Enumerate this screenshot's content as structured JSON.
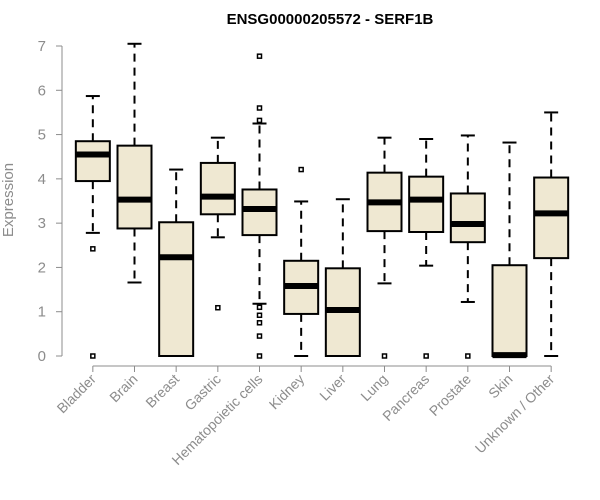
{
  "chart_data": {
    "type": "boxplot",
    "title": "ENSG00000205572 - SERF1B",
    "xlabel": "",
    "ylabel": "Expression",
    "ylim": [
      0,
      7
    ],
    "yticks": [
      0,
      1,
      2,
      3,
      4,
      5,
      6,
      7
    ],
    "grid": false,
    "legend": "none",
    "colors": {
      "box_fill": "#efe8d2",
      "stroke": "#000000",
      "axis": "#8c8c8c"
    },
    "categories": [
      "Bladder",
      "Brain",
      "Breast",
      "Gastric",
      "Hematopoietic cells",
      "Kidney",
      "Liver",
      "Lung",
      "Pancreas",
      "Prostate",
      "Skin",
      "Unknown / Other"
    ],
    "boxes": [
      {
        "name": "Bladder",
        "whisker_low": 2.78,
        "q1": 3.95,
        "median": 4.55,
        "q3": 4.85,
        "whisker_high": 5.87,
        "outliers": [
          2.42,
          0.0
        ]
      },
      {
        "name": "Brain",
        "whisker_low": 1.66,
        "q1": 2.88,
        "median": 3.53,
        "q3": 4.75,
        "whisker_high": 7.05,
        "outliers": []
      },
      {
        "name": "Breast",
        "whisker_low": 0.0,
        "q1": 0.0,
        "median": 2.23,
        "q3": 3.02,
        "whisker_high": 4.21,
        "outliers": []
      },
      {
        "name": "Gastric",
        "whisker_low": 2.68,
        "q1": 3.2,
        "median": 3.6,
        "q3": 4.36,
        "whisker_high": 4.93,
        "outliers": [
          1.09
        ]
      },
      {
        "name": "Hematopoietic cells",
        "whisker_low": 1.18,
        "q1": 2.73,
        "median": 3.32,
        "q3": 3.76,
        "whisker_high": 5.25,
        "outliers": [
          6.77,
          5.6,
          5.32,
          1.1,
          0.92,
          0.75,
          0.45,
          0.0
        ]
      },
      {
        "name": "Kidney",
        "whisker_low": 0.0,
        "q1": 0.95,
        "median": 1.58,
        "q3": 2.15,
        "whisker_high": 3.49,
        "outliers": [
          4.21
        ]
      },
      {
        "name": "Liver",
        "whisker_low": 0.0,
        "q1": 0.0,
        "median": 1.04,
        "q3": 1.98,
        "whisker_high": 3.54,
        "outliers": []
      },
      {
        "name": "Lung",
        "whisker_low": 1.64,
        "q1": 2.82,
        "median": 3.47,
        "q3": 4.14,
        "whisker_high": 4.93,
        "outliers": [
          0.0
        ]
      },
      {
        "name": "Pancreas",
        "whisker_low": 2.04,
        "q1": 2.8,
        "median": 3.53,
        "q3": 4.05,
        "whisker_high": 4.9,
        "outliers": [
          0.0
        ]
      },
      {
        "name": "Prostate",
        "whisker_low": 1.22,
        "q1": 2.57,
        "median": 2.98,
        "q3": 3.67,
        "whisker_high": 4.98,
        "outliers": [
          0.0
        ]
      },
      {
        "name": "Skin",
        "whisker_low": 0.0,
        "q1": 0.0,
        "median": 0.02,
        "q3": 2.05,
        "whisker_high": 4.82,
        "outliers": []
      },
      {
        "name": "Unknown / Other",
        "whisker_low": 0.0,
        "q1": 2.21,
        "median": 3.22,
        "q3": 4.03,
        "whisker_high": 5.5,
        "outliers": []
      }
    ]
  }
}
